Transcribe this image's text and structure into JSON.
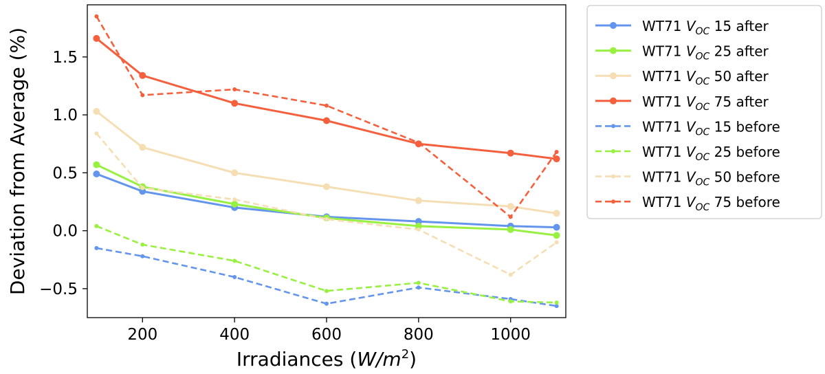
{
  "chart_data": {
    "type": "line",
    "xlabel": "Irradiances (W/m²)",
    "xlabel_parts": {
      "prefix": "Irradiances (",
      "math": "W/m",
      "sup": "2",
      "suffix": ")"
    },
    "ylabel": "Deviation from Average (%)",
    "xlim": [
      80,
      1120
    ],
    "ylim": [
      -0.75,
      1.95
    ],
    "xticks": [
      200,
      400,
      600,
      800,
      1000
    ],
    "xtick_labels": [
      "200",
      "400",
      "600",
      "800",
      "1000"
    ],
    "yticks": [
      -0.5,
      0.0,
      0.5,
      1.0,
      1.5
    ],
    "ytick_labels": [
      "−0.5",
      "0.0",
      "0.5",
      "1.0",
      "1.5"
    ],
    "grid": false,
    "legend_position": "outside-right",
    "x": [
      100,
      200,
      400,
      600,
      800,
      1000,
      1100
    ],
    "series": [
      {
        "name": "WT71 VOC 15 after",
        "label_pre": "WT71 ",
        "label_sub": "OC",
        "label_post": " 15 after",
        "color": "#6495ED",
        "style": "solid",
        "values": [
          0.49,
          0.34,
          0.2,
          0.12,
          0.08,
          0.04,
          0.03
        ]
      },
      {
        "name": "WT71 VOC 25 after",
        "label_pre": "WT71 ",
        "label_sub": "OC",
        "label_post": " 25 after",
        "color": "#98F040",
        "style": "solid",
        "values": [
          0.57,
          0.38,
          0.23,
          0.11,
          0.04,
          0.01,
          -0.04
        ]
      },
      {
        "name": "WT71 VOC 50 after",
        "label_pre": "WT71 ",
        "label_sub": "OC",
        "label_post": " 50 after",
        "color": "#F5DEB3",
        "style": "solid",
        "values": [
          1.03,
          0.72,
          0.5,
          0.38,
          0.26,
          0.21,
          0.15
        ]
      },
      {
        "name": "WT71 VOC 75 after",
        "label_pre": "WT71 ",
        "label_sub": "OC",
        "label_post": " 75 after",
        "color": "#F4603E",
        "style": "solid",
        "values": [
          1.66,
          1.34,
          1.1,
          0.95,
          0.75,
          0.67,
          0.62
        ]
      },
      {
        "name": "WT71 VOC 15 before",
        "label_pre": "WT71 ",
        "label_sub": "OC",
        "label_post": " 15 before",
        "color": "#6495ED",
        "style": "dashed",
        "values": [
          -0.15,
          -0.22,
          -0.4,
          -0.63,
          -0.49,
          -0.59,
          -0.65
        ]
      },
      {
        "name": "WT71 VOC 25 before",
        "label_pre": "WT71 ",
        "label_sub": "OC",
        "label_post": " 25 before",
        "color": "#98F040",
        "style": "dashed",
        "values": [
          0.04,
          -0.12,
          -0.26,
          -0.52,
          -0.45,
          -0.61,
          -0.62
        ]
      },
      {
        "name": "WT71 VOC 50 before",
        "label_pre": "WT71 ",
        "label_sub": "OC",
        "label_post": " 50 before",
        "color": "#F5DEB3",
        "style": "dashed",
        "values": [
          0.84,
          0.37,
          0.27,
          0.1,
          0.01,
          -0.38,
          -0.1
        ]
      },
      {
        "name": "WT71 VOC 75 before",
        "label_pre": "WT71 ",
        "label_sub": "OC",
        "label_post": " 75 before",
        "color": "#F4603E",
        "style": "dashed",
        "values": [
          1.85,
          1.17,
          1.22,
          1.08,
          0.76,
          0.12,
          0.68
        ]
      }
    ]
  }
}
